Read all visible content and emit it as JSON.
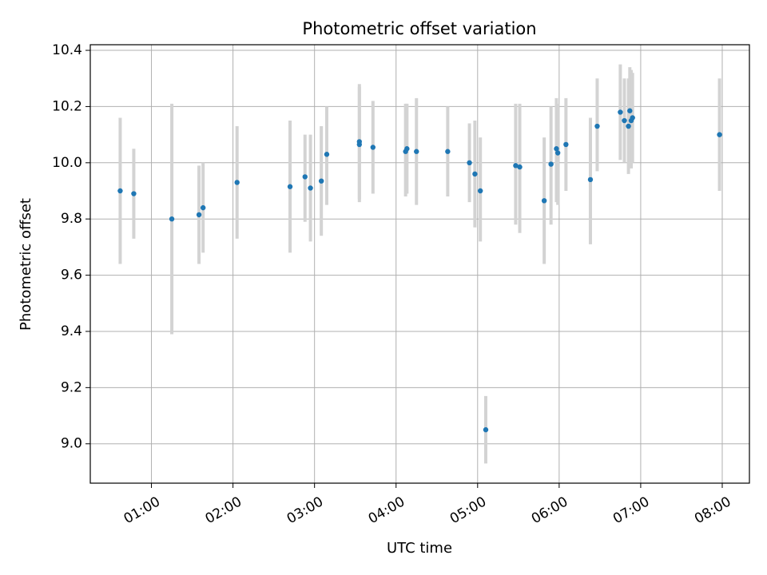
{
  "chart_data": {
    "type": "scatter",
    "title": "Photometric offset variation",
    "xlabel": "UTC time",
    "ylabel": "Photometric offset",
    "x_unit": "UTC time (HH:MM)",
    "xlim": [
      "00:15",
      "08:20"
    ],
    "ylim": [
      8.86,
      10.42
    ],
    "x_ticks": [
      "01:00",
      "02:00",
      "03:00",
      "04:00",
      "05:00",
      "06:00",
      "07:00",
      "08:00"
    ],
    "y_ticks": [
      9.0,
      9.2,
      9.4,
      9.6,
      9.8,
      10.0,
      10.2,
      10.4
    ],
    "y_tick_labels": [
      "9.0",
      "9.2",
      "9.4",
      "9.6",
      "9.8",
      "10.0",
      "10.2",
      "10.4"
    ],
    "grid": true,
    "legend": "none",
    "colors": {
      "point": "#1f77b4",
      "errorbar": "#d3d3d3",
      "grid": "#b0b0b0"
    },
    "points": [
      {
        "x": "00:37",
        "y": 9.9,
        "low": 9.64,
        "high": 10.16
      },
      {
        "x": "00:47",
        "y": 9.89,
        "low": 9.73,
        "high": 10.05
      },
      {
        "x": "01:15",
        "y": 9.8,
        "low": 9.39,
        "high": 10.21
      },
      {
        "x": "01:35",
        "y": 9.815,
        "low": 9.64,
        "high": 9.99
      },
      {
        "x": "01:38",
        "y": 9.84,
        "low": 9.68,
        "high": 10.0
      },
      {
        "x": "02:03",
        "y": 9.93,
        "low": 9.73,
        "high": 10.13
      },
      {
        "x": "02:42",
        "y": 9.915,
        "low": 9.68,
        "high": 10.15
      },
      {
        "x": "02:53",
        "y": 9.95,
        "low": 9.79,
        "high": 10.1
      },
      {
        "x": "02:57",
        "y": 9.91,
        "low": 9.72,
        "high": 10.1
      },
      {
        "x": "03:05",
        "y": 9.935,
        "low": 9.74,
        "high": 10.13
      },
      {
        "x": "03:09",
        "y": 10.03,
        "low": 9.85,
        "high": 10.2
      },
      {
        "x": "03:33",
        "y": 10.065,
        "low": 9.86,
        "high": 10.28
      },
      {
        "x": "03:33",
        "y": 10.075,
        "low": 9.87,
        "high": 10.27
      },
      {
        "x": "03:43",
        "y": 10.055,
        "low": 9.89,
        "high": 10.22
      },
      {
        "x": "04:07",
        "y": 10.04,
        "low": 9.88,
        "high": 10.21
      },
      {
        "x": "04:08",
        "y": 10.05,
        "low": 9.89,
        "high": 10.21
      },
      {
        "x": "04:15",
        "y": 10.04,
        "low": 9.85,
        "high": 10.23
      },
      {
        "x": "04:38",
        "y": 10.04,
        "low": 9.88,
        "high": 10.2
      },
      {
        "x": "04:54",
        "y": 10.0,
        "low": 9.86,
        "high": 10.14
      },
      {
        "x": "04:58",
        "y": 9.96,
        "low": 9.77,
        "high": 10.15
      },
      {
        "x": "05:02",
        "y": 9.9,
        "low": 9.72,
        "high": 10.09
      },
      {
        "x": "05:06",
        "y": 9.05,
        "low": 8.93,
        "high": 9.17
      },
      {
        "x": "05:28",
        "y": 9.99,
        "low": 9.78,
        "high": 10.21
      },
      {
        "x": "05:31",
        "y": 9.985,
        "low": 9.75,
        "high": 10.21
      },
      {
        "x": "05:49",
        "y": 9.865,
        "low": 9.64,
        "high": 10.09
      },
      {
        "x": "05:54",
        "y": 9.995,
        "low": 9.78,
        "high": 10.2
      },
      {
        "x": "05:58",
        "y": 10.05,
        "low": 9.86,
        "high": 10.23
      },
      {
        "x": "05:59",
        "y": 10.035,
        "low": 9.85,
        "high": 10.21
      },
      {
        "x": "06:05",
        "y": 10.065,
        "low": 9.9,
        "high": 10.23
      },
      {
        "x": "06:23",
        "y": 9.94,
        "low": 9.71,
        "high": 10.16
      },
      {
        "x": "06:28",
        "y": 10.13,
        "low": 9.97,
        "high": 10.3
      },
      {
        "x": "06:45",
        "y": 10.18,
        "low": 10.01,
        "high": 10.35
      },
      {
        "x": "06:48",
        "y": 10.15,
        "low": 10.0,
        "high": 10.3
      },
      {
        "x": "06:51",
        "y": 10.13,
        "low": 9.96,
        "high": 10.3
      },
      {
        "x": "06:52",
        "y": 10.185,
        "low": 10.01,
        "high": 10.34
      },
      {
        "x": "06:53",
        "y": 10.15,
        "low": 9.98,
        "high": 10.33
      },
      {
        "x": "06:54",
        "y": 10.16,
        "low": 10.0,
        "high": 10.32
      },
      {
        "x": "07:58",
        "y": 10.1,
        "low": 9.9,
        "high": 10.3
      }
    ]
  }
}
